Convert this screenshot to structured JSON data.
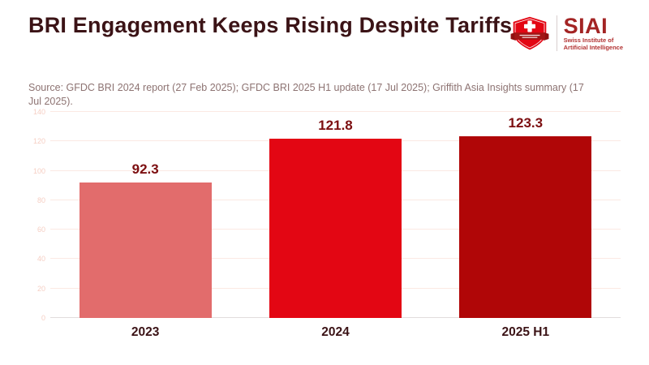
{
  "header": {
    "title": "BRI Engagement Keeps Rising Despite Tariffs",
    "source": "Source: GFDC BRI 2024 report (27 Feb 2025); GFDC BRI 2025 H1 update (17 Jul 2025); Griffith Asia Insights summary (17 Jul 2025)."
  },
  "logo": {
    "icon": "swiss-shield-icon",
    "acronym": "SIAI",
    "subtitle_line1": "Swiss Institute of",
    "subtitle_line2": "Artificial Intelligence",
    "colors": {
      "shield": "#e30613",
      "ribbon": "#a31515",
      "acronym_text": "#a32424",
      "subtitle_text": "#b23232"
    }
  },
  "chart_data": {
    "type": "bar",
    "title": "BRI Engagement Keeps Rising Despite Tariffs",
    "categories": [
      "2023",
      "2024",
      "2025 H1"
    ],
    "values": [
      92.3,
      121.8,
      123.3
    ],
    "value_labels": [
      "92.3",
      "121.8",
      "123.3"
    ],
    "bar_colors": [
      "#e26c6c",
      "#e30613",
      "#b00607"
    ],
    "xlabel": "",
    "ylabel": "",
    "ylim": [
      0,
      140
    ],
    "yticks": [
      0,
      20,
      40,
      60,
      80,
      100,
      120,
      140
    ],
    "grid": true,
    "legend": false,
    "colors": {
      "value_label": "#7c0e10",
      "x_tick_label": "#3b1316",
      "y_tick_label": "#f6cfc4",
      "gridline": "#fbe9e3",
      "baseline": "#e2dddd"
    }
  }
}
